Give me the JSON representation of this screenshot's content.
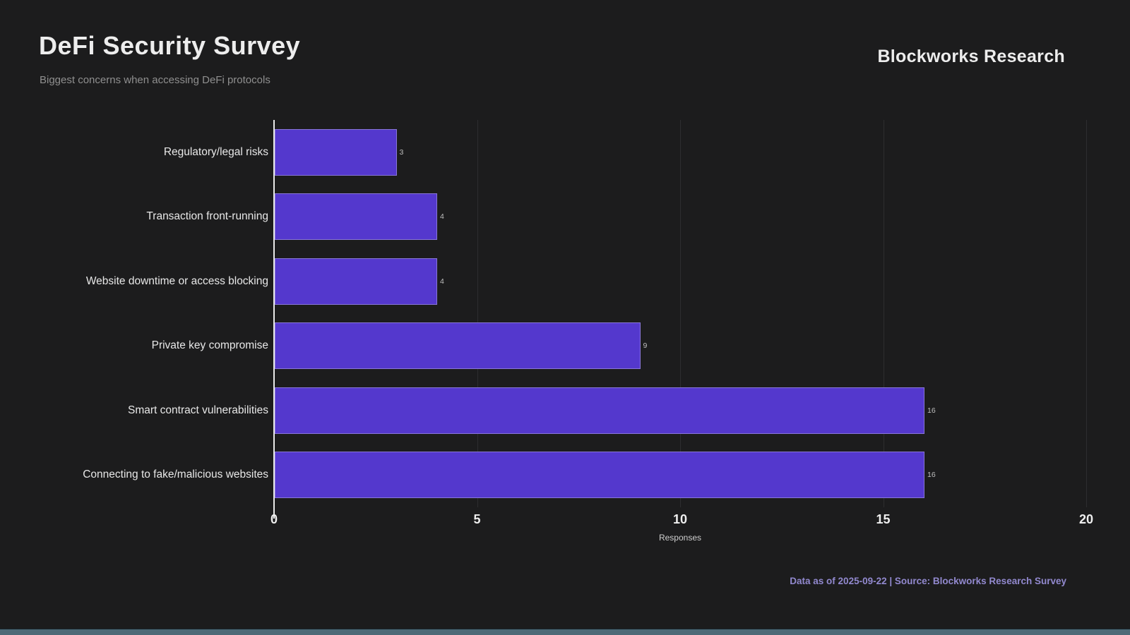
{
  "header": {
    "title": "DeFi Security Survey",
    "subtitle": "Biggest concerns when accessing DeFi protocols",
    "brand": "Blockworks Research"
  },
  "footer": {
    "text": "Data as of 2025-09-22 | Source: Blockworks Research Survey"
  },
  "colors": {
    "background": "#1c1c1d",
    "bar": "#5438cd",
    "axis": "#e9e9e9",
    "gridline": "#2d2d2f",
    "title": "#ededed",
    "subtitle": "#8f8f8f",
    "category_label": "#e8e8e8",
    "value_label": "#bfbfbf",
    "tick_label": "#efefef",
    "xaxis_label": "#cfcfcf",
    "footer_accent": "#9289cf",
    "bottom_strip": "#4e6a77"
  },
  "chart_data": {
    "type": "bar",
    "orientation": "horizontal",
    "title": "DeFi Security Survey",
    "subtitle": "Biggest concerns when accessing DeFi protocols",
    "categories": [
      "Regulatory/legal risks",
      "Transaction front-running",
      "Website downtime or access blocking",
      "Private key compromise",
      "Smart contract vulnerabilities",
      "Connecting to fake/malicious websites"
    ],
    "values": [
      3,
      4,
      4,
      9,
      16,
      16
    ],
    "value_labels": [
      "3",
      "4",
      "4",
      "9",
      "16",
      "16"
    ],
    "xlabel": "Responses",
    "ylabel": "",
    "xlim": [
      0,
      20
    ],
    "xticks": [
      0,
      5,
      10,
      15,
      20
    ],
    "grid": "vertical-faint",
    "legend": "none",
    "bar_color": "#5438cd"
  }
}
